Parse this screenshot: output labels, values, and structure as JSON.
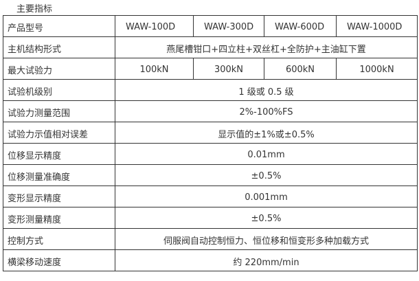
{
  "title": "主要指标",
  "models": {
    "label": "产品型号",
    "values": [
      "WAW-100D",
      "WAW-300D",
      "WAW-600D",
      "WAW-1000D"
    ]
  },
  "structure": {
    "label": "主机结构形式",
    "value": "燕尾槽钳口+四立柱+双丝杠+全防护+主油缸下置"
  },
  "max_force": {
    "label": "最大试验力",
    "values": [
      "100kN",
      "300kN",
      "600kN",
      "1000kN"
    ]
  },
  "rows": [
    {
      "label": "试验机级别",
      "value": "1 级或 0.5 级"
    },
    {
      "label": "试验力测量范围",
      "value": "2%-100%FS"
    },
    {
      "label": "试验力示值相对误差",
      "value": "显示值的±1%或±0.5%"
    },
    {
      "label": "位移显示精度",
      "value": "0.01mm"
    },
    {
      "label": "位移测量准确度",
      "value": "±0.5%"
    },
    {
      "label": "变形显示精度",
      "value": "0.001mm"
    },
    {
      "label": "变形测量精度",
      "value": "±0.5%"
    },
    {
      "label": "控制方式",
      "value": "伺服阀自动控制恒力、恒位移和恒变形多种加载方式"
    },
    {
      "label": "横梁移动速度",
      "value": "约 220mm/min"
    }
  ]
}
